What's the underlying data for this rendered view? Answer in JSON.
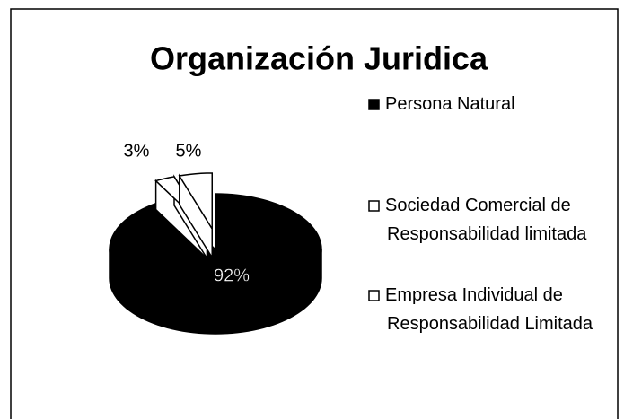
{
  "chart_data": {
    "type": "pie",
    "title": "Organización Juridica",
    "categories": [
      "Persona Natural",
      "Sociedad Comercial de Responsabilidad limitada",
      "Empresa Individual de Responsabilidad Limitada"
    ],
    "values": [
      92,
      3,
      5
    ],
    "value_labels": [
      "92%",
      "3%",
      "5%"
    ],
    "colors": [
      "#000000",
      "#ffffff",
      "#ffffff"
    ],
    "legend": "right"
  }
}
